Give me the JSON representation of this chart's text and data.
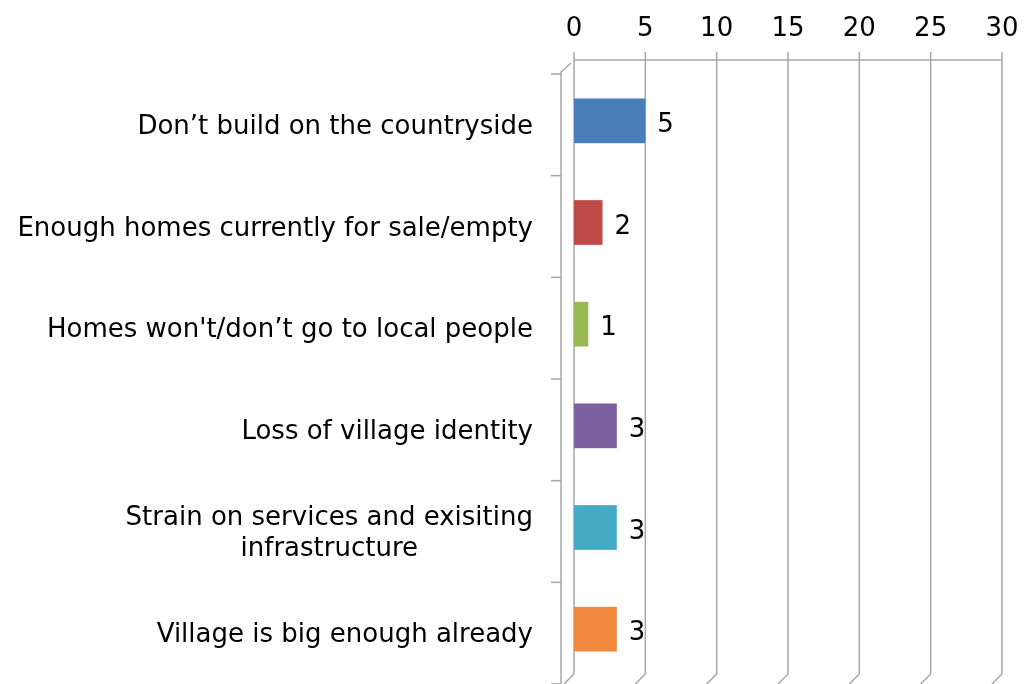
{
  "chart_data": {
    "type": "bar",
    "orientation": "horizontal",
    "categories": [
      "Don’t build on the countryside",
      "Enough homes currently for sale/empty",
      "Homes won't/don’t go to local people",
      "Loss of village identity",
      "Strain on services and exisiting infrastructure",
      "Village is big enough already"
    ],
    "values": [
      5,
      2,
      1,
      3,
      3,
      3
    ],
    "colors": [
      "#4a7ebb",
      "#be4b48",
      "#98b954",
      "#7d60a0",
      "#46aac5",
      "#f0883e"
    ],
    "xlim": [
      0,
      30
    ],
    "xticks": [
      0,
      5,
      10,
      15,
      20,
      25,
      30
    ],
    "grid": "x",
    "data_labels": true
  }
}
